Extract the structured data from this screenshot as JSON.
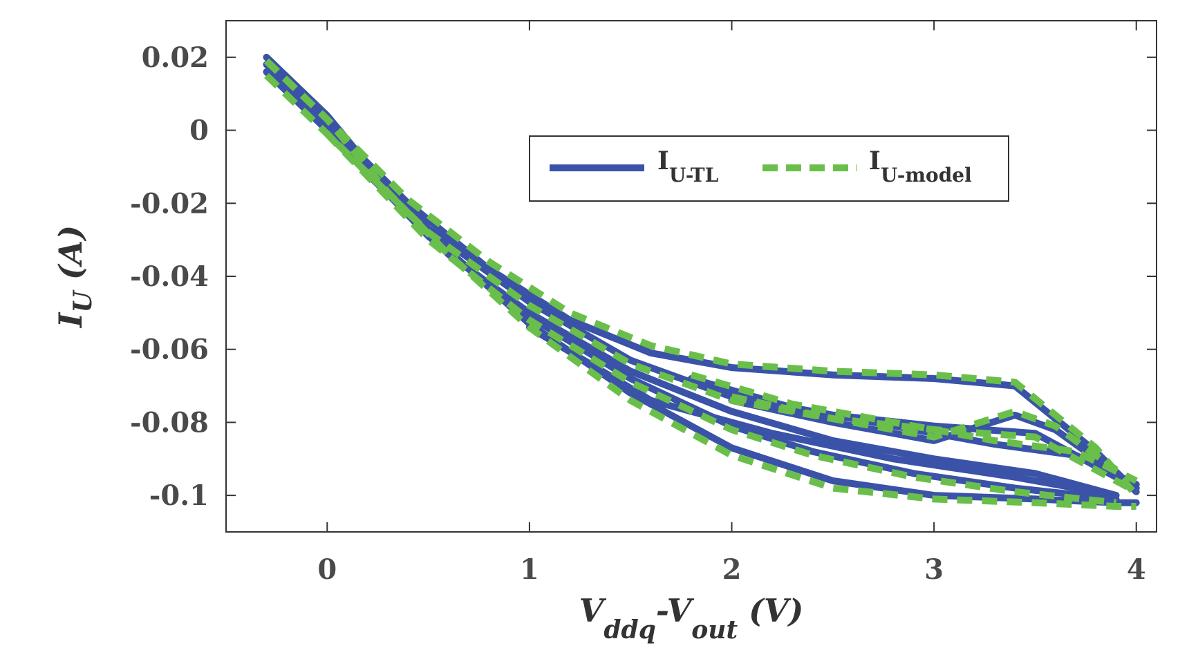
{
  "chart_data": {
    "type": "line",
    "title": "",
    "xlabel": "V_ddq-V_out (V)",
    "xlabel_parts": {
      "main1": "V",
      "sub1": "ddq",
      "main2": "-V",
      "sub2": "out",
      "unit": " (V)"
    },
    "ylabel": "I_U (A)",
    "ylabel_parts": {
      "main": "I",
      "sub": "U",
      "unit": " (A)"
    },
    "xlim": [
      -0.5,
      4.1
    ],
    "ylim": [
      -0.11,
      0.03
    ],
    "xticks": [
      0,
      1,
      2,
      3,
      4
    ],
    "xtick_labels": [
      "0",
      "1",
      "2",
      "3",
      "4"
    ],
    "yticks": [
      0.02,
      0,
      -0.02,
      -0.04,
      -0.06,
      -0.08,
      -0.1
    ],
    "ytick_labels": [
      "0.02",
      "0",
      "-0.02",
      "-0.04",
      "-0.06",
      "-0.08",
      "-0.1"
    ],
    "grid": false,
    "legend": {
      "placement": "top-right",
      "orientation": "horizontal"
    },
    "series": [
      {
        "name": "I_U-TL",
        "legend_main": "I",
        "legend_sub": "U-TL",
        "color": "#3a52a8",
        "style": "solid",
        "segments": [
          {
            "x": [
              -0.3,
              0,
              0.3,
              0.6,
              1.0,
              1.5,
              2.0,
              2.5,
              3.0,
              3.5,
              3.9,
              4.0
            ],
            "y": [
              0.02,
              0.004,
              -0.016,
              -0.033,
              -0.053,
              -0.072,
              -0.087,
              -0.096,
              -0.1,
              -0.101,
              -0.102,
              -0.102
            ]
          },
          {
            "x": [
              -0.3,
              0,
              0.4,
              0.8,
              1.2,
              1.6,
              2.0,
              2.5,
              3.0,
              3.4,
              3.8,
              4.0
            ],
            "y": [
              0.018,
              0.002,
              -0.02,
              -0.038,
              -0.052,
              -0.061,
              -0.065,
              -0.067,
              -0.068,
              -0.07,
              -0.088,
              -0.099
            ]
          },
          {
            "x": [
              -0.3,
              0,
              0.5,
              1.0,
              1.5,
              2.0,
              2.5,
              3.0,
              3.5,
              4.0
            ],
            "y": [
              0.016,
              0.0,
              -0.027,
              -0.047,
              -0.063,
              -0.073,
              -0.078,
              -0.081,
              -0.083,
              -0.098
            ]
          },
          {
            "x": [
              -0.2,
              0.2,
              0.6,
              1.0,
              1.5,
              2.0,
              2.5,
              3.0,
              3.5,
              3.9
            ],
            "y": [
              0.012,
              -0.012,
              -0.034,
              -0.05,
              -0.066,
              -0.077,
              -0.085,
              -0.09,
              -0.094,
              -0.1
            ]
          },
          {
            "x": [
              0.0,
              0.5,
              1.0,
              1.5,
              2.0,
              2.4,
              2.9,
              3.4,
              3.9
            ],
            "y": [
              0.0,
              -0.029,
              -0.051,
              -0.068,
              -0.081,
              -0.088,
              -0.094,
              -0.098,
              -0.101
            ]
          },
          {
            "x": [
              1.0,
              1.6,
              2.2,
              2.8,
              3.4,
              3.9
            ],
            "y": [
              -0.054,
              -0.074,
              -0.083,
              -0.09,
              -0.095,
              -0.1
            ]
          },
          {
            "x": [
              1.8,
              2.3,
              2.8,
              3.3,
              3.7,
              4.0
            ],
            "y": [
              -0.068,
              -0.076,
              -0.081,
              -0.086,
              -0.089,
              -0.097
            ]
          },
          {
            "x": [
              2.0,
              2.5,
              3.0,
              3.4,
              3.6,
              3.9
            ],
            "y": [
              -0.074,
              -0.08,
              -0.085,
              -0.078,
              -0.082,
              -0.094
            ]
          }
        ]
      },
      {
        "name": "I_U-model",
        "legend_main": "I",
        "legend_sub": "U-model",
        "color": "#6abf4b",
        "style": "dashed",
        "segments": [
          {
            "x": [
              -0.3,
              0,
              0.3,
              0.6,
              1.0,
              1.5,
              2.0,
              2.5,
              3.0,
              3.5,
              3.9,
              4.0
            ],
            "y": [
              0.019,
              0.003,
              -0.017,
              -0.034,
              -0.054,
              -0.074,
              -0.089,
              -0.098,
              -0.101,
              -0.102,
              -0.103,
              -0.103
            ]
          },
          {
            "x": [
              -0.3,
              0,
              0.4,
              0.8,
              1.2,
              1.6,
              2.0,
              2.5,
              3.0,
              3.4,
              3.8,
              4.0
            ],
            "y": [
              0.019,
              0.003,
              -0.019,
              -0.036,
              -0.05,
              -0.059,
              -0.064,
              -0.066,
              -0.067,
              -0.069,
              -0.087,
              -0.1
            ]
          },
          {
            "x": [
              -0.3,
              0,
              0.5,
              1.0,
              1.5,
              2.0,
              2.5,
              3.0,
              3.5,
              4.0
            ],
            "y": [
              0.015,
              -0.001,
              -0.028,
              -0.048,
              -0.064,
              -0.074,
              -0.079,
              -0.082,
              -0.084,
              -0.099
            ]
          },
          {
            "x": [
              0.0,
              0.5,
              1.0,
              1.5,
              2.0,
              2.4,
              2.9,
              3.4,
              3.9
            ],
            "y": [
              -0.001,
              -0.03,
              -0.052,
              -0.069,
              -0.082,
              -0.089,
              -0.095,
              -0.099,
              -0.102
            ]
          },
          {
            "x": [
              1.8,
              2.3,
              2.8,
              3.3,
              3.7,
              4.0
            ],
            "y": [
              -0.067,
              -0.075,
              -0.08,
              -0.085,
              -0.088,
              -0.096
            ]
          },
          {
            "x": [
              2.0,
              2.5,
              3.0,
              3.4,
              3.6,
              3.9
            ],
            "y": [
              -0.073,
              -0.079,
              -0.084,
              -0.077,
              -0.081,
              -0.093
            ]
          }
        ]
      }
    ]
  }
}
